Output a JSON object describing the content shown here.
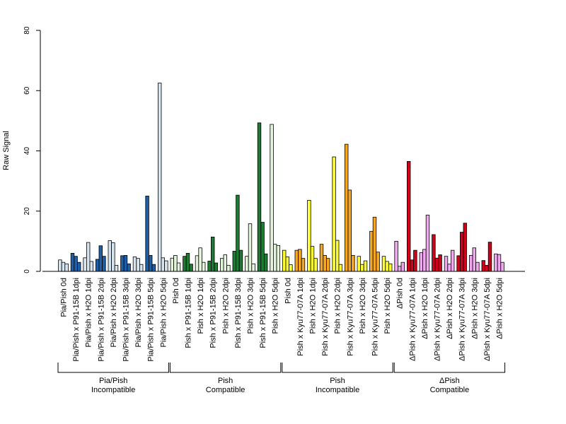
{
  "chart_data": {
    "type": "bar",
    "ylabel": "Raw Signal",
    "xlabel": "",
    "title": "",
    "ylim": [
      0,
      80
    ],
    "yticks": [
      0,
      20,
      40,
      60,
      80
    ],
    "grid": false,
    "categories": [
      "Pia/Pish 0d",
      "Pia/Pish x P91-15B 1dpi",
      "Pia/Pish x H2O 1dpi",
      "Pia/Pish x P91-15B 2dpi",
      "Pia/Pish x H2O 2dpi",
      "Pia/Pish x P91-15B 3dpi",
      "Pia/Pish x H2O 3dpi",
      "Pia/Pish x P91-15B 5dpi",
      "Pia/Pish x H2O 5dpi",
      "Pish 0d",
      "Pish x P91-15B 1dpi",
      "Pish x H2O 1dpi",
      "Pish x P91-15B 2dpi",
      "Pish x H2O 2dpi",
      "Pish x P91-15B 3dpi",
      "Pish x H2O 3dpi",
      "Pish x P91-15B 5dpi",
      "Pish x H2O 5dpi",
      "Pish 0d",
      "Pish x Kyu77-07A 1dpi",
      "Pish x H2O 1dpi",
      "Pish x Kyu77-07A 2dpi",
      "Pish x H2O 2dpi",
      "Pish x Kyu77-07A 3dpi",
      "Pish x H2O 3dpi",
      "Pish x Kyu77-07A 5dpi",
      "Pish x H2O 5dpi",
      "ΔPish 0d",
      "ΔPish x Kyu77-07A 1dpi",
      "ΔPish x H2O 1dpi",
      "ΔPish x Kyu77-07A 2dpi",
      "ΔPish x H2O 2dpi",
      "ΔPish x Kyu77-07A 3dpi",
      "ΔPish x H2O 3dpi",
      "ΔPish x Kyu77-07A 5dpi",
      "ΔPish x H2O 5dpi"
    ],
    "category_colors": [
      "#d6e4f0",
      "#1f5fa8",
      "#d6e4f0",
      "#1f5fa8",
      "#d6e4f0",
      "#1f5fa8",
      "#d6e4f0",
      "#1f5fa8",
      "#d6e4f0",
      "#e3f3dc",
      "#1f7a33",
      "#e3f3dc",
      "#1f7a33",
      "#e3f3dc",
      "#1f7a33",
      "#e3f3dc",
      "#1f7a33",
      "#e3f3dc",
      "#ffff33",
      "#f5a623",
      "#ffff33",
      "#f5a623",
      "#ffff33",
      "#f5a623",
      "#ffff33",
      "#f5a623",
      "#ffff33",
      "#f0a8ee",
      "#d0021b",
      "#f0a8ee",
      "#d0021b",
      "#f0a8ee",
      "#d0021b",
      "#f0a8ee",
      "#d0021b",
      "#f0a8ee"
    ],
    "values": [
      [
        3.8,
        3.0,
        2.5
      ],
      [
        6.0,
        5.0,
        3.0
      ],
      [
        4.5,
        9.6,
        3.3
      ],
      [
        4.0,
        8.5,
        5.0
      ],
      [
        10.2,
        9.5,
        2.0
      ],
      [
        5.2,
        5.3,
        2.5
      ],
      [
        4.8,
        4.3,
        2.3
      ],
      [
        25.0,
        5.3,
        2.3
      ],
      [
        62.5,
        4.5,
        3.5
      ],
      [
        4.4,
        5.3,
        2.8
      ],
      [
        5.0,
        6.0,
        2.4
      ],
      [
        5.2,
        7.8,
        3.0
      ],
      [
        3.4,
        11.4,
        2.8
      ],
      [
        4.3,
        5.5,
        2.0
      ],
      [
        6.7,
        25.3,
        7.0
      ],
      [
        5.0,
        15.8,
        2.5
      ],
      [
        49.3,
        16.3,
        5.8
      ],
      [
        48.8,
        9.0,
        8.6
      ],
      [
        7.0,
        4.8,
        2.2
      ],
      [
        7.0,
        7.3,
        4.3
      ],
      [
        23.6,
        8.3,
        4.3
      ],
      [
        9.0,
        5.3,
        4.3
      ],
      [
        38.0,
        10.3,
        2.3
      ],
      [
        42.2,
        27.0,
        5.3
      ],
      [
        5.0,
        2.3,
        3.5
      ],
      [
        13.3,
        18.0,
        6.4
      ],
      [
        5.0,
        3.3,
        2.5
      ],
      [
        10.0,
        1.7,
        3.0
      ],
      [
        36.5,
        3.8,
        7.0
      ],
      [
        6.2,
        7.3,
        18.7
      ],
      [
        12.2,
        4.4,
        5.5
      ],
      [
        5.0,
        2.4,
        7.0
      ],
      [
        5.2,
        13.0,
        16.0
      ],
      [
        5.3,
        7.8,
        3.0
      ],
      [
        3.6,
        2.0,
        9.7
      ],
      [
        5.8,
        5.6,
        3.0
      ]
    ],
    "groups": [
      {
        "label_line1": "Pia/Pish",
        "label_line2": "Incompatible",
        "start": 0,
        "end": 8
      },
      {
        "label_line1": "Pish",
        "label_line2": "Compatible",
        "start": 9,
        "end": 17
      },
      {
        "label_line1": "Pish",
        "label_line2": "Incompatible",
        "start": 18,
        "end": 26
      },
      {
        "label_line1": "ΔPish",
        "label_line2": "Compatible",
        "start": 27,
        "end": 35
      }
    ]
  }
}
